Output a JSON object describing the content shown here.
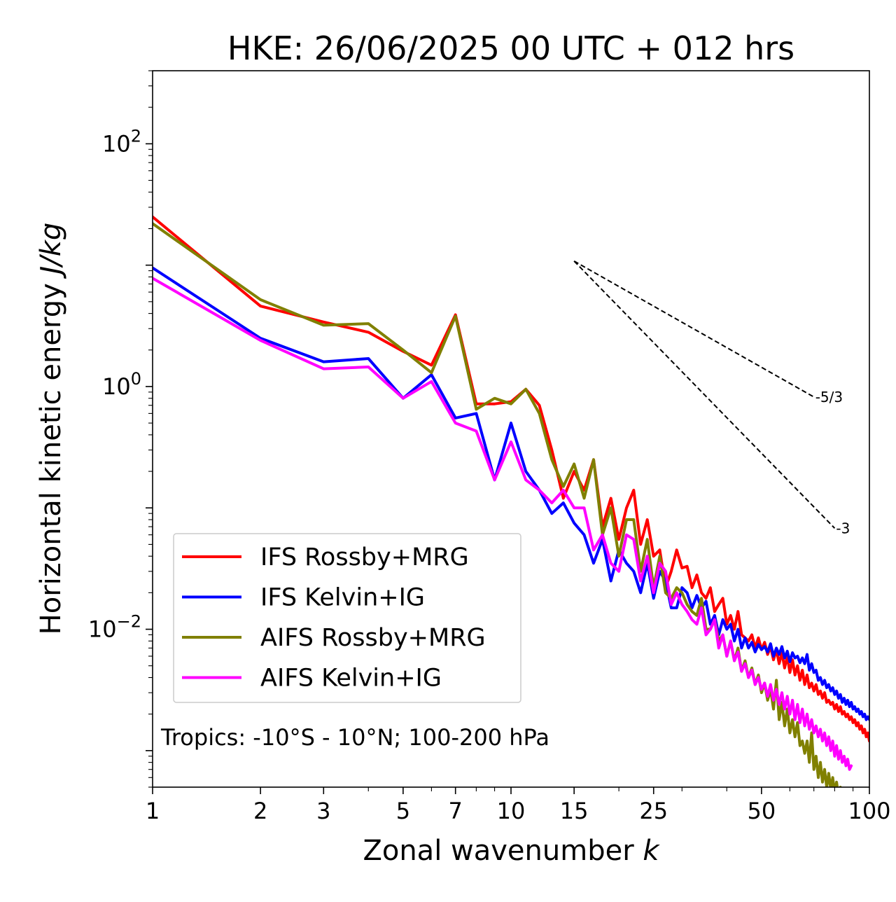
{
  "chart_data": {
    "type": "line",
    "title": "HKE: 26/06/2025 00 UTC + 012 hrs",
    "xlabel": "Zonal wavenumber ",
    "xlabel_italic": "k",
    "ylabel": "Horizontal kinetic energy ",
    "ylabel_italic": "J/kg",
    "x_scale": "log",
    "y_scale": "log",
    "xlim": [
      1,
      100
    ],
    "ylim": [
      0.0005,
      400
    ],
    "x_ticks": [
      1,
      2,
      3,
      5,
      7,
      10,
      15,
      25,
      50,
      100
    ],
    "x_tick_labels": [
      "1",
      "2",
      "3",
      "5",
      "7",
      "10",
      "15",
      "25",
      "50",
      "100"
    ],
    "y_ticks": [
      0.01,
      1,
      100
    ],
    "y_tick_bases": [
      "10",
      "10",
      "10"
    ],
    "y_tick_exponents": [
      "−2",
      "0",
      "2"
    ],
    "grid": false,
    "legend_position": "lower-left",
    "annotation": "Tropics: -10°S - 10°N; 100-200 hPa",
    "reference_lines": [
      {
        "label": "-5/3",
        "x": [
          15,
          70
        ],
        "y": [
          10.8,
          0.82
        ]
      },
      {
        "label": "-3",
        "x": [
          15,
          80
        ],
        "y": [
          10.8,
          0.068
        ]
      }
    ],
    "series": [
      {
        "name": "IFS Rossby+MRG",
        "color": "#ff0000",
        "x": [
          1,
          2,
          3,
          4,
          5,
          6,
          7,
          8,
          9,
          10,
          11,
          12,
          13,
          14,
          15,
          16,
          17,
          18,
          19,
          20,
          21,
          22,
          23,
          24,
          25,
          26,
          27,
          28,
          29,
          30,
          31,
          32,
          33,
          34,
          35,
          36,
          37,
          38,
          39,
          40,
          41,
          42,
          43,
          44,
          45,
          46,
          47,
          48,
          49,
          50,
          51,
          52,
          53,
          54,
          55,
          56,
          57,
          58,
          59,
          60,
          61,
          62,
          63,
          64,
          65,
          66,
          67,
          68,
          69,
          70,
          71,
          72,
          73,
          74,
          75,
          76,
          77,
          78,
          79,
          80,
          81,
          82,
          83,
          84,
          85,
          86,
          87,
          88,
          89,
          90,
          91,
          92,
          93,
          94,
          95,
          96,
          97,
          98,
          99,
          100
        ],
        "y": [
          25,
          4.6,
          3.4,
          2.8,
          1.95,
          1.5,
          3.9,
          0.72,
          0.72,
          0.75,
          0.95,
          0.7,
          0.3,
          0.12,
          0.2,
          0.14,
          0.25,
          0.07,
          0.12,
          0.055,
          0.1,
          0.14,
          0.05,
          0.08,
          0.04,
          0.045,
          0.022,
          0.03,
          0.045,
          0.032,
          0.033,
          0.022,
          0.028,
          0.02,
          0.018,
          0.022,
          0.014,
          0.016,
          0.018,
          0.011,
          0.013,
          0.01,
          0.014,
          0.009,
          0.0085,
          0.008,
          0.009,
          0.007,
          0.0085,
          0.0068,
          0.0078,
          0.0062,
          0.0072,
          0.0056,
          0.0068,
          0.0052,
          0.0064,
          0.0048,
          0.006,
          0.0044,
          0.0056,
          0.0042,
          0.005,
          0.0038,
          0.0046,
          0.0035,
          0.0042,
          0.0033,
          0.0036,
          0.0031,
          0.0035,
          0.0029,
          0.0031,
          0.0027,
          0.003,
          0.0025,
          0.0026,
          0.0024,
          0.0025,
          0.0022,
          0.0024,
          0.0021,
          0.0023,
          0.002,
          0.0021,
          0.0019,
          0.002,
          0.0018,
          0.0019,
          0.0017,
          0.0018,
          0.0016,
          0.0017,
          0.0015,
          0.0016,
          0.0014,
          0.0015,
          0.0013,
          0.0014,
          0.0012
        ]
      },
      {
        "name": "IFS Kelvin+IG",
        "color": "#0000ff",
        "x": [
          1,
          2,
          3,
          4,
          5,
          6,
          7,
          8,
          9,
          10,
          11,
          12,
          13,
          14,
          15,
          16,
          17,
          18,
          19,
          20,
          21,
          22,
          23,
          24,
          25,
          26,
          27,
          28,
          29,
          30,
          31,
          32,
          33,
          34,
          35,
          36,
          37,
          38,
          39,
          40,
          41,
          42,
          43,
          44,
          45,
          46,
          47,
          48,
          49,
          50,
          51,
          52,
          53,
          54,
          55,
          56,
          57,
          58,
          59,
          60,
          61,
          62,
          63,
          64,
          65,
          66,
          67,
          68,
          69,
          70,
          71,
          72,
          73,
          74,
          75,
          76,
          77,
          78,
          79,
          80,
          81,
          82,
          83,
          84,
          85,
          86,
          87,
          88,
          89,
          90,
          91,
          92,
          93,
          94,
          95,
          96,
          97,
          98,
          99,
          100
        ],
        "y": [
          9.5,
          2.5,
          1.6,
          1.7,
          0.8,
          1.25,
          0.55,
          0.6,
          0.17,
          0.5,
          0.2,
          0.14,
          0.09,
          0.11,
          0.075,
          0.06,
          0.035,
          0.055,
          0.025,
          0.045,
          0.035,
          0.03,
          0.02,
          0.035,
          0.018,
          0.03,
          0.025,
          0.015,
          0.015,
          0.022,
          0.02,
          0.015,
          0.019,
          0.015,
          0.017,
          0.011,
          0.013,
          0.009,
          0.012,
          0.01,
          0.011,
          0.008,
          0.01,
          0.007,
          0.0085,
          0.007,
          0.0078,
          0.0065,
          0.0075,
          0.0068,
          0.0072,
          0.0065,
          0.0076,
          0.006,
          0.007,
          0.0062,
          0.0072,
          0.0058,
          0.0066,
          0.0054,
          0.0064,
          0.0058,
          0.006,
          0.0053,
          0.0058,
          0.0052,
          0.0062,
          0.0046,
          0.0052,
          0.0044,
          0.0046,
          0.0038,
          0.004,
          0.0035,
          0.0038,
          0.0033,
          0.0035,
          0.0031,
          0.0033,
          0.0029,
          0.0031,
          0.0027,
          0.0029,
          0.0025,
          0.0027,
          0.0024,
          0.0026,
          0.0023,
          0.0025,
          0.0022,
          0.0023,
          0.0021,
          0.0022,
          0.002,
          0.0021,
          0.0019,
          0.002,
          0.0018,
          0.0019,
          0.0018
        ]
      },
      {
        "name": "AIFS Rossby+MRG",
        "color": "#808000",
        "x": [
          1,
          2,
          3,
          4,
          5,
          6,
          7,
          8,
          9,
          10,
          11,
          12,
          13,
          14,
          15,
          16,
          17,
          18,
          19,
          20,
          21,
          22,
          23,
          24,
          25,
          26,
          27,
          28,
          29,
          30,
          31,
          32,
          33,
          34,
          35,
          36,
          37,
          38,
          39,
          40,
          41,
          42,
          43,
          44,
          45,
          46,
          47,
          48,
          49,
          50,
          51,
          52,
          53,
          54,
          55,
          56,
          57,
          58,
          59,
          60,
          61,
          62,
          63,
          64,
          65,
          66,
          67,
          68,
          69,
          70,
          71,
          72,
          73,
          74,
          75,
          76,
          77,
          78,
          79,
          80,
          81,
          82,
          83,
          84,
          85,
          86,
          87
        ],
        "y": [
          22,
          5.2,
          3.2,
          3.3,
          2.0,
          1.3,
          3.8,
          0.65,
          0.8,
          0.72,
          0.95,
          0.6,
          0.25,
          0.15,
          0.23,
          0.12,
          0.25,
          0.06,
          0.1,
          0.04,
          0.08,
          0.08,
          0.03,
          0.055,
          0.022,
          0.04,
          0.02,
          0.018,
          0.022,
          0.02,
          0.016,
          0.014,
          0.013,
          0.018,
          0.01,
          0.01,
          0.012,
          0.008,
          0.009,
          0.006,
          0.008,
          0.0055,
          0.007,
          0.0045,
          0.0055,
          0.004,
          0.0048,
          0.0035,
          0.0042,
          0.003,
          0.0036,
          0.0026,
          0.0032,
          0.0022,
          0.0038,
          0.0018,
          0.0025,
          0.0016,
          0.0022,
          0.0014,
          0.0018,
          0.0013,
          0.0017,
          0.0011,
          0.0012,
          0.00095,
          0.0012,
          0.0008,
          0.0014,
          0.0007,
          0.0009,
          0.0006,
          0.0008,
          0.00055,
          0.0007,
          0.0005,
          0.00065,
          0.00048,
          0.0006,
          0.00045,
          0.00055,
          0.00042,
          0.0005,
          0.0004,
          0.00048,
          0.00038,
          0.0004
        ]
      },
      {
        "name": "AIFS Kelvin+IG",
        "color": "#ff00ff",
        "x": [
          1,
          2,
          3,
          4,
          5,
          6,
          7,
          8,
          9,
          10,
          11,
          12,
          13,
          14,
          15,
          16,
          17,
          18,
          19,
          20,
          21,
          22,
          23,
          24,
          25,
          26,
          27,
          28,
          29,
          30,
          31,
          32,
          33,
          34,
          35,
          36,
          37,
          38,
          39,
          40,
          41,
          42,
          43,
          44,
          45,
          46,
          47,
          48,
          49,
          50,
          51,
          52,
          53,
          54,
          55,
          56,
          57,
          58,
          59,
          60,
          61,
          62,
          63,
          64,
          65,
          66,
          67,
          68,
          69,
          70,
          71,
          72,
          73,
          74,
          75,
          76,
          77,
          78,
          79,
          80,
          81,
          82,
          83,
          84,
          85,
          86,
          87,
          88,
          89
        ],
        "y": [
          7.8,
          2.4,
          1.4,
          1.45,
          0.8,
          1.1,
          0.5,
          0.43,
          0.17,
          0.35,
          0.17,
          0.14,
          0.11,
          0.14,
          0.1,
          0.1,
          0.045,
          0.06,
          0.035,
          0.03,
          0.06,
          0.055,
          0.025,
          0.04,
          0.02,
          0.035,
          0.03,
          0.016,
          0.02,
          0.016,
          0.014,
          0.012,
          0.011,
          0.015,
          0.009,
          0.01,
          0.012,
          0.007,
          0.009,
          0.006,
          0.008,
          0.0055,
          0.0065,
          0.0045,
          0.0052,
          0.004,
          0.0046,
          0.0035,
          0.004,
          0.0032,
          0.0036,
          0.0028,
          0.0035,
          0.0026,
          0.0032,
          0.0024,
          0.003,
          0.0022,
          0.0028,
          0.002,
          0.0026,
          0.0018,
          0.0024,
          0.0017,
          0.0022,
          0.0016,
          0.002,
          0.0015,
          0.0018,
          0.0014,
          0.0016,
          0.0013,
          0.0015,
          0.0012,
          0.0014,
          0.0011,
          0.0013,
          0.001,
          0.0012,
          0.0009,
          0.0011,
          0.00085,
          0.001,
          0.0008,
          0.0009,
          0.00075,
          0.00085,
          0.0007,
          0.00075
        ]
      }
    ]
  }
}
